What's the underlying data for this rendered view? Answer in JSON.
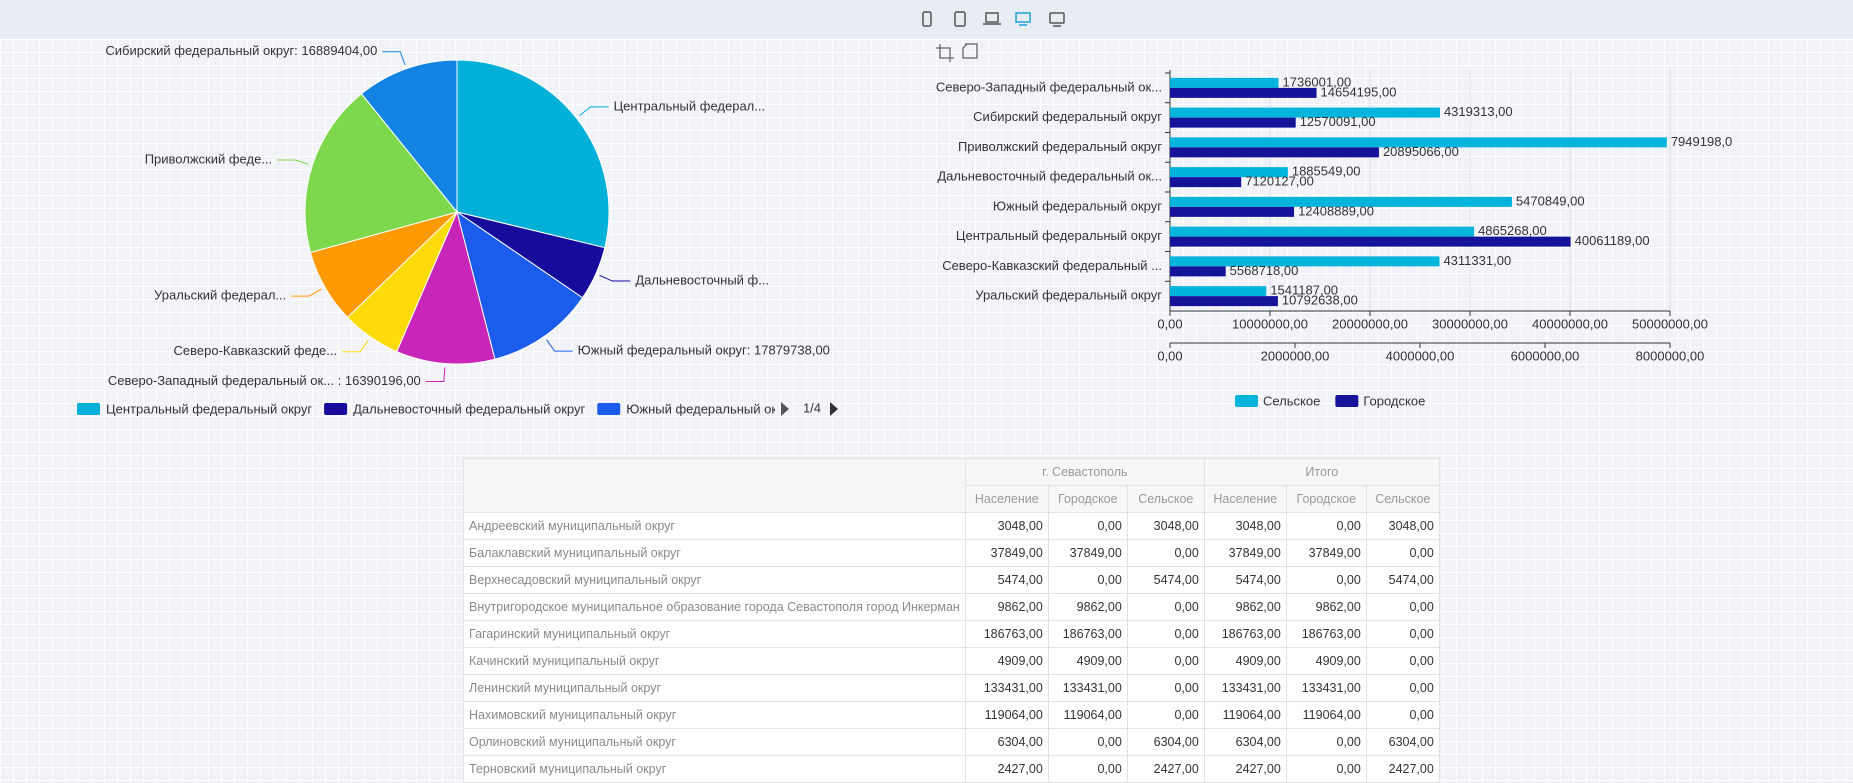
{
  "chart_data": [
    {
      "type": "pie",
      "categories": [
        "Центральный федеральный округ",
        "Дальневосточный федеральный округ",
        "Южный федеральный округ",
        "Северо-Западный федеральный округ",
        "Северо-Кавказский федеральный округ",
        "Уральский федеральный округ",
        "Приволжский федеральный округ",
        "Сибирский федеральный округ"
      ],
      "values": [
        44926457,
        9005676,
        17879738,
        16390196,
        9880049,
        12333825,
        28844264,
        16889404
      ],
      "value_labels": [
        "Центральный федерал...",
        "Дальневосточный ф...",
        "Южный федеральный округ: 17879738,00",
        "Северо-Западный федеральный ок... : 16390196,00",
        "Северо-Кавказский феде...",
        "Уральский федерал...",
        "Приволжский феде...",
        "Сибирский федеральный округ: 16889404,00"
      ],
      "colors": [
        "#00b0d8",
        "#170b9c",
        "#1b5ced",
        "#c826b9",
        "#ffdb0a",
        "#ff9a05",
        "#7dd84b",
        "#1282e3"
      ],
      "legend_page": "1/4"
    },
    {
      "type": "bar",
      "orientation": "horizontal",
      "categories": [
        "Северо-Западный федеральный ок...",
        "Сибирский федеральный округ",
        "Приволжский федеральный округ",
        "Дальневосточный федеральный ок...",
        "Южный федеральный округ",
        "Центральный федеральный округ",
        "Северо-Кавказский федеральный ...",
        "Уральский федеральный округ"
      ],
      "series": [
        {
          "name": "Сельское",
          "color": "#00b4dc",
          "axis": "x2",
          "values": [
            1736001,
            4319313,
            7949198,
            1885549,
            5470849,
            4865268,
            4311331,
            1541187
          ],
          "value_labels": [
            "1736001,00",
            "4319313,00",
            "7949198,0",
            "1885549,00",
            "5470849,00",
            "4865268,00",
            "4311331,00",
            "1541187,00"
          ]
        },
        {
          "name": "Городское",
          "color": "#16139b",
          "values": [
            14654195,
            12570091,
            20895066,
            7120127,
            12408889,
            40061189,
            5568718,
            10792638
          ],
          "value_labels": [
            "14654195,00",
            "12570091,00",
            "20895066,00",
            "7120127,00",
            "12408889,00",
            "40061189,00",
            "5568718,00",
            "10792638,00"
          ]
        }
      ],
      "xlim": [
        0,
        50000000
      ],
      "xticks": [
        {
          "value": 0,
          "label": "0,00"
        },
        {
          "value": 10000000,
          "label": "10000000,00"
        },
        {
          "value": 20000000,
          "label": "20000000,00"
        },
        {
          "value": 30000000,
          "label": "30000000,00"
        },
        {
          "value": 40000000,
          "label": "40000000,00"
        },
        {
          "value": 50000000,
          "label": "50000000,00"
        }
      ],
      "x2lim": [
        0,
        8000000
      ],
      "x2ticks": [
        {
          "value": 0,
          "label": "0,00"
        },
        {
          "value": 2000000,
          "label": "2000000,00"
        },
        {
          "value": 4000000,
          "label": "4000000,00"
        },
        {
          "value": 6000000,
          "label": "6000000,00"
        },
        {
          "value": 8000000,
          "label": "8000000,00"
        }
      ]
    }
  ],
  "table": {
    "groups": [
      "г. Севастополь",
      "Итого"
    ],
    "columns": [
      "Население",
      "Городское",
      "Сельское",
      "Население",
      "Городское",
      "Сельское"
    ],
    "rows": [
      [
        "Андреевский муниципальный округ",
        "3048,00",
        "0,00",
        "3048,00",
        "3048,00",
        "0,00",
        "3048,00"
      ],
      [
        "Балаклавский муниципальный округ",
        "37849,00",
        "37849,00",
        "0,00",
        "37849,00",
        "37849,00",
        "0,00"
      ],
      [
        "Верхнесадовский муниципальный округ",
        "5474,00",
        "0,00",
        "5474,00",
        "5474,00",
        "0,00",
        "5474,00"
      ],
      [
        "Внутригородское муниципальное образование города Севастополя город Инкерман",
        "9862,00",
        "9862,00",
        "0,00",
        "9862,00",
        "9862,00",
        "0,00"
      ],
      [
        "Гагаринский муниципальный округ",
        "186763,00",
        "186763,00",
        "0,00",
        "186763,00",
        "186763,00",
        "0,00"
      ],
      [
        "Качинский муниципальный округ",
        "4909,00",
        "4909,00",
        "0,00",
        "4909,00",
        "4909,00",
        "0,00"
      ],
      [
        "Ленинский муниципальный округ",
        "133431,00",
        "133431,00",
        "0,00",
        "133431,00",
        "133431,00",
        "0,00"
      ],
      [
        "Нахимовский муниципальный округ",
        "119064,00",
        "119064,00",
        "0,00",
        "119064,00",
        "119064,00",
        "0,00"
      ],
      [
        "Орлиновский муниципальный округ",
        "6304,00",
        "0,00",
        "6304,00",
        "6304,00",
        "0,00",
        "6304,00"
      ],
      [
        "Терновский муниципальный округ",
        "2427,00",
        "0,00",
        "2427,00",
        "2427,00",
        "0,00",
        "2427,00"
      ]
    ]
  }
}
